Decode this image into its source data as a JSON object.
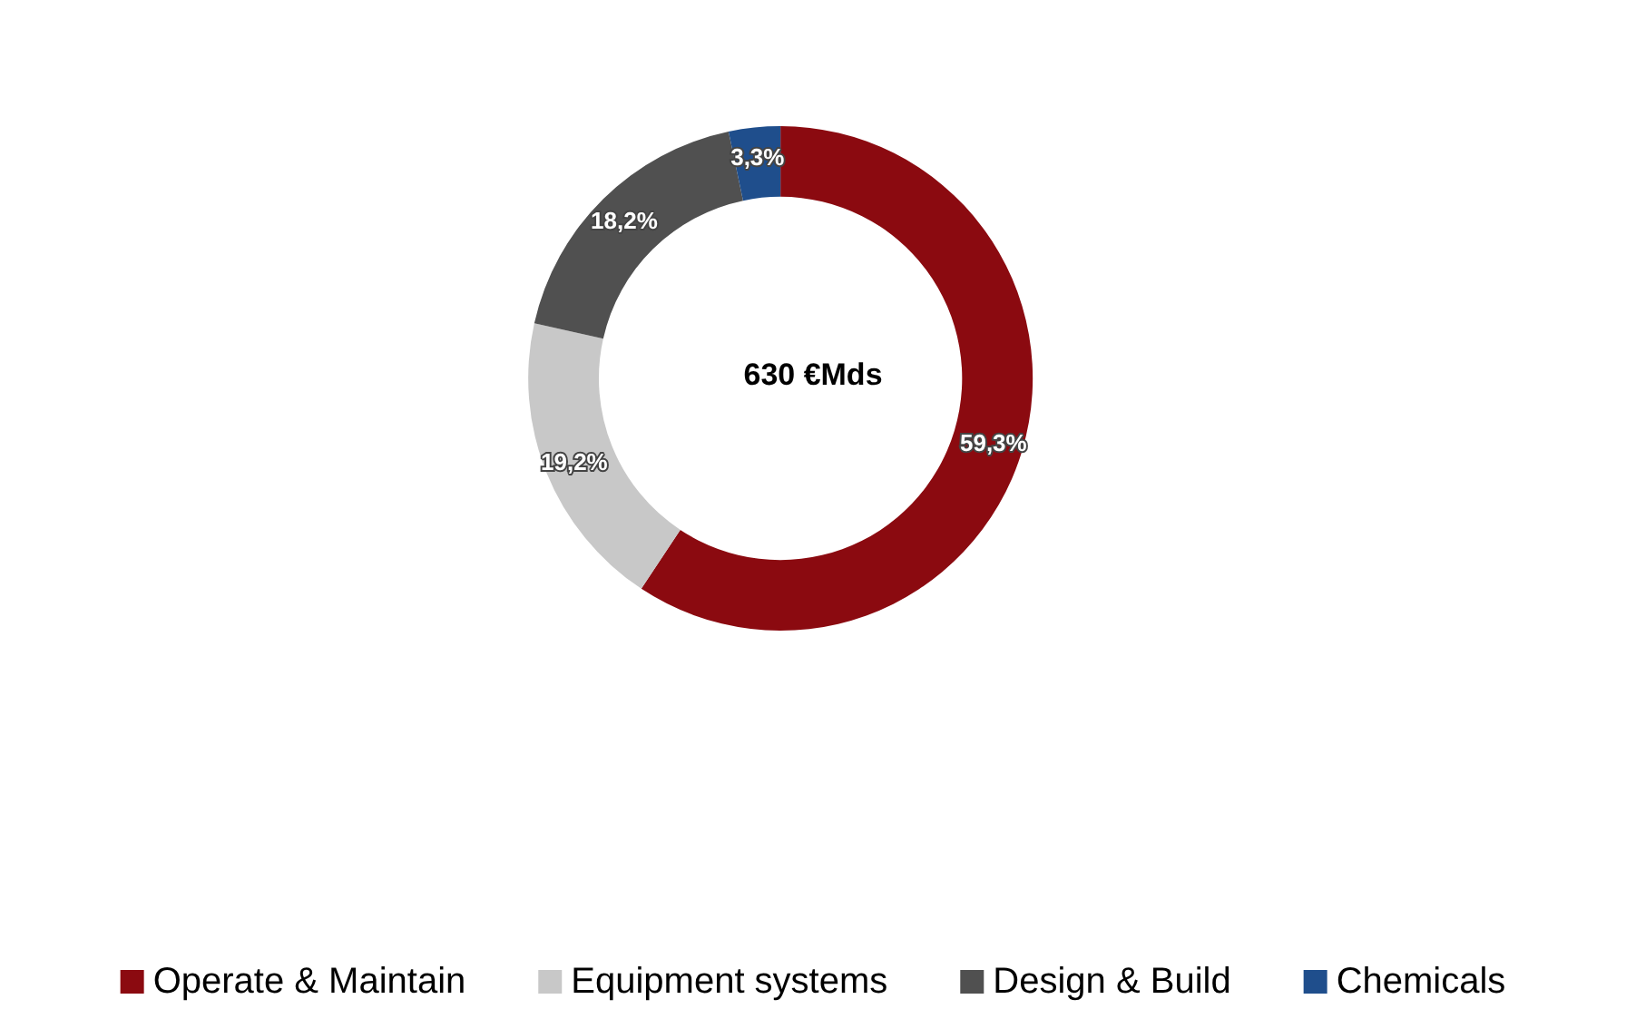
{
  "chart_data": {
    "type": "donut",
    "categories": [
      "Operate & Maintain",
      "Equipment systems",
      "Design & Build",
      "Chemicals"
    ],
    "values": [
      59.3,
      19.2,
      18.2,
      3.3
    ],
    "colors": [
      "#8b0a10",
      "#c8c8c8",
      "#505050",
      "#1f4e8c"
    ],
    "value_labels": [
      "59,3%",
      "19,2%",
      "18,2%",
      "3,3%"
    ],
    "annotations": [
      "630 €Mds"
    ],
    "legend": "bottom"
  }
}
